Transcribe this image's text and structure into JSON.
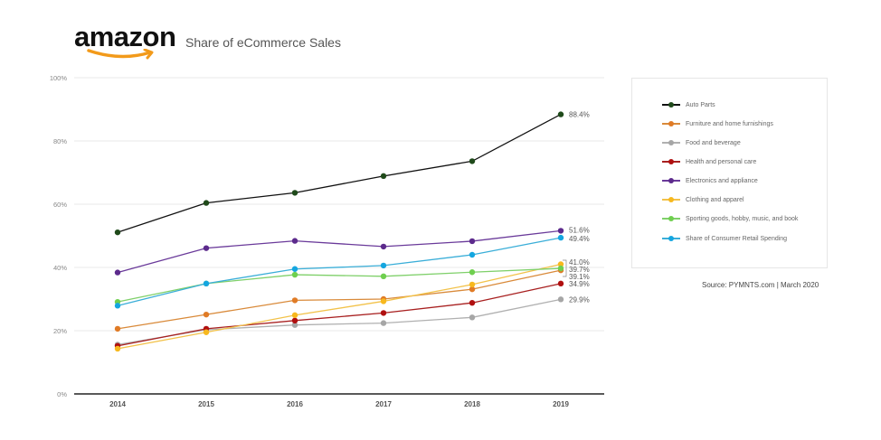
{
  "header": {
    "logo_text": "amazon",
    "title": "Share of eCommerce Sales"
  },
  "source_note": "Source: PYMNTS.com  |  March 2020",
  "chart_data": {
    "type": "line",
    "title": "Share of eCommerce Sales",
    "xlabel": "",
    "ylabel": "",
    "x": [
      "2014",
      "2015",
      "2016",
      "2017",
      "2018",
      "2019"
    ],
    "ylim": [
      0,
      100
    ],
    "yticks": [
      0,
      20,
      40,
      60,
      80,
      100
    ],
    "ytick_labels": [
      "0%",
      "20%",
      "40%",
      "60%",
      "80%",
      "100%"
    ],
    "grid": true,
    "legend_position": "right",
    "series": [
      {
        "name": "Auto Parts",
        "color": "#1f4a1a",
        "line_color": "#111111",
        "values": [
          51.1,
          60.4,
          63.6,
          68.9,
          73.6,
          88.4
        ],
        "end_label": "88.4%"
      },
      {
        "name": "Furniture and home furnishings",
        "color": "#e07b26",
        "line_color": "#d98a3a",
        "values": [
          20.6,
          25.1,
          29.6,
          30.0,
          33.1,
          39.1
        ],
        "end_label": "39.1%"
      },
      {
        "name": "Food and beverage",
        "color": "#a6a6a6",
        "line_color": "#b0b0b0",
        "values": [
          15.6,
          20.3,
          21.8,
          22.4,
          24.2,
          29.9
        ],
        "end_label": "29.9%"
      },
      {
        "name": "Health and personal care",
        "color": "#b00f0f",
        "line_color": "#a82020",
        "values": [
          15.2,
          20.6,
          23.2,
          25.6,
          28.8,
          34.9
        ],
        "end_label": "34.9%"
      },
      {
        "name": "Electronics and appliance",
        "color": "#5c2a8c",
        "line_color": "#6a3a9a",
        "values": [
          38.4,
          46.1,
          48.4,
          46.6,
          48.3,
          51.6
        ],
        "end_label": "51.6%"
      },
      {
        "name": "Clothing and apparel",
        "color": "#f7b81e",
        "line_color": "#f2c24a",
        "values": [
          14.3,
          19.5,
          24.9,
          29.3,
          34.6,
          41.0
        ],
        "end_label": "41.0%"
      },
      {
        "name": "Sporting goods, hobby, music, and book",
        "color": "#6fcf4f",
        "line_color": "#7fd06a",
        "values": [
          29.1,
          34.9,
          37.7,
          37.2,
          38.5,
          39.7
        ],
        "end_label": "39.7%"
      },
      {
        "name": "Share of Consumer Retail Spending",
        "color": "#14a6e0",
        "line_color": "#3aaed8",
        "values": [
          27.9,
          34.9,
          39.5,
          40.6,
          44.0,
          49.4
        ],
        "end_label": "49.4%"
      }
    ]
  }
}
